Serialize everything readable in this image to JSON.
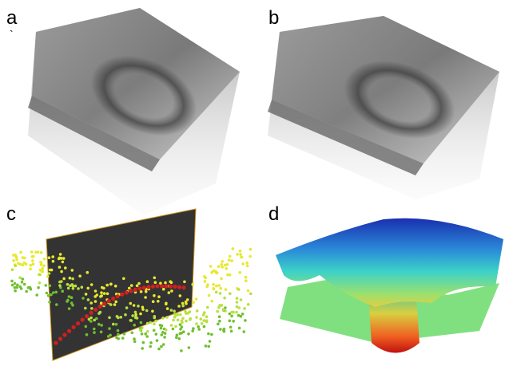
{
  "panels": [
    {
      "label": "a",
      "note": "`"
    },
    {
      "label": "b"
    },
    {
      "label": "c"
    },
    {
      "label": "d"
    }
  ]
}
